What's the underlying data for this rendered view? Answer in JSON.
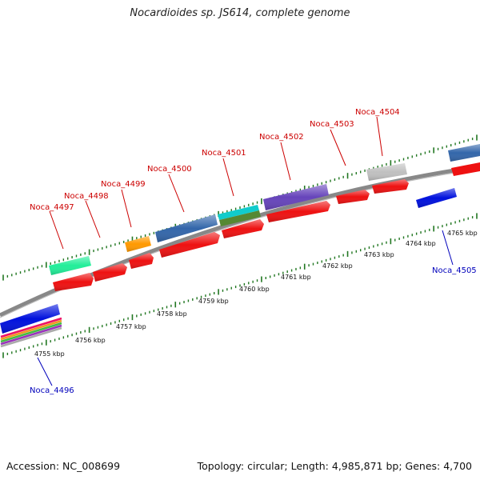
{
  "title": "Nocardioides sp. JS614, complete genome",
  "footer": {
    "accession": "Accession: NC_008699",
    "summary": "Topology: circular; Length: 4,985,871 bp; Genes: 4,700"
  },
  "scale_labels": [
    "4755 kbp",
    "4756 kbp",
    "4757 kbp",
    "4758 kbp",
    "4759 kbp",
    "4760 kbp",
    "4761 kbp",
    "4762 kbp",
    "4763 kbp",
    "4764 kbp",
    "4765 kbp"
  ],
  "forward_gene_labels": [
    "Noca_4497",
    "Noca_4498",
    "Noca_4499",
    "Noca_4500",
    "Noca_4501",
    "Noca_4502",
    "Noca_4503",
    "Noca_4504"
  ],
  "reverse_gene_labels": [
    "Noca_4496",
    "Noca_4505"
  ],
  "colors": {
    "forward_label": "#cc0000",
    "reverse_label": "#0000bb",
    "cds": "#ee1111",
    "reverse_cds": "#0011dd",
    "backbone": "#888888",
    "ticks": "#227722"
  }
}
